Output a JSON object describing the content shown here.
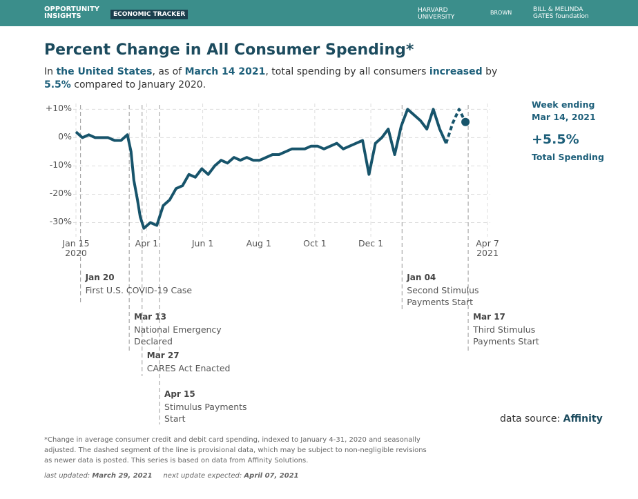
{
  "header": {
    "logo": "OPPORTUNITY INSIGHTS",
    "tracker": "ECONOMIC TRACKER",
    "partners": [
      "HARVARD UNIVERSITY",
      "BROWN",
      "BILL & MELINDA GATES foundation"
    ]
  },
  "chart_data": {
    "type": "line",
    "title": "Percent Change in All Consumer Spending*",
    "subtitle": [
      {
        "text": "In ",
        "bold": false
      },
      {
        "text": "the United States",
        "bold": true
      },
      {
        "text": ", as of ",
        "bold": false
      },
      {
        "text": "March 14 2021",
        "bold": true
      },
      {
        "text": ", total spending by all consumers ",
        "bold": false
      },
      {
        "text": "increased",
        "bold": true
      },
      {
        "text": " by ",
        "bold": false
      },
      {
        "text": "5.5%",
        "bold": true
      },
      {
        "text": " compared to January 2020.",
        "bold": false
      }
    ],
    "x": [
      "2020-01-15",
      "2020-01-22",
      "2020-01-29",
      "2020-02-05",
      "2020-02-12",
      "2020-02-19",
      "2020-02-26",
      "2020-03-04",
      "2020-03-11",
      "2020-03-15",
      "2020-03-18",
      "2020-03-22",
      "2020-03-25",
      "2020-03-29",
      "2020-04-05",
      "2020-04-12",
      "2020-04-15",
      "2020-04-19",
      "2020-04-26",
      "2020-05-03",
      "2020-05-10",
      "2020-05-17",
      "2020-05-24",
      "2020-05-31",
      "2020-06-07",
      "2020-06-14",
      "2020-06-21",
      "2020-06-28",
      "2020-07-05",
      "2020-07-12",
      "2020-07-19",
      "2020-07-26",
      "2020-08-02",
      "2020-08-09",
      "2020-08-16",
      "2020-08-23",
      "2020-08-30",
      "2020-09-06",
      "2020-09-13",
      "2020-09-20",
      "2020-09-27",
      "2020-10-04",
      "2020-10-11",
      "2020-10-18",
      "2020-10-25",
      "2020-11-01",
      "2020-11-08",
      "2020-11-15",
      "2020-11-22",
      "2020-11-29",
      "2020-12-06",
      "2020-12-13",
      "2020-12-20",
      "2020-12-27",
      "2021-01-03",
      "2021-01-10",
      "2021-01-17",
      "2021-01-24",
      "2021-01-31",
      "2021-02-07",
      "2021-02-14",
      "2021-02-21",
      "2021-02-28",
      "2021-03-07",
      "2021-03-14"
    ],
    "series": [
      {
        "color": "#17546b",
        "dashed": false,
        "values": [
          2,
          0,
          1,
          0,
          0,
          0,
          -1,
          -1,
          1,
          -5,
          -15,
          -22,
          -28,
          -32,
          -30,
          -31,
          -28,
          -24,
          -22,
          -18,
          -17,
          -13,
          -14,
          -11,
          -13,
          -10,
          -8,
          -9,
          -7,
          -8,
          -7,
          -8,
          -8,
          -7,
          -6,
          -6,
          -5,
          -4,
          -4,
          -4,
          -3,
          -3,
          -4,
          -3,
          -2,
          -4,
          -3,
          -2,
          -1,
          -13,
          -2,
          0,
          3,
          -6,
          4,
          10,
          8,
          6,
          3,
          10,
          3,
          -2,
          null,
          null,
          null
        ]
      },
      {
        "color": "#17546b",
        "dashed": true,
        "values": [
          null,
          null,
          null,
          null,
          null,
          null,
          null,
          null,
          null,
          null,
          null,
          null,
          null,
          null,
          null,
          null,
          null,
          null,
          null,
          null,
          null,
          null,
          null,
          null,
          null,
          null,
          null,
          null,
          null,
          null,
          null,
          null,
          null,
          null,
          null,
          null,
          null,
          null,
          null,
          null,
          null,
          null,
          null,
          null,
          null,
          null,
          null,
          null,
          null,
          null,
          null,
          null,
          null,
          null,
          null,
          null,
          null,
          null,
          null,
          null,
          null,
          -2,
          5,
          10,
          5.5
        ]
      }
    ],
    "xlim": [
      "2020-01-12",
      "2021-04-10"
    ],
    "xticks": [
      {
        "value": "2020-01-15",
        "label": "Jan 15\n2020"
      },
      {
        "value": "2020-04-01",
        "label": "Apr 1"
      },
      {
        "value": "2020-06-01",
        "label": "Jun 1"
      },
      {
        "value": "2020-08-01",
        "label": "Aug 1"
      },
      {
        "value": "2020-10-01",
        "label": "Oct 1"
      },
      {
        "value": "2020-12-01",
        "label": "Dec 1"
      },
      {
        "value": "2021-04-07",
        "label": "Apr 7\n2021"
      }
    ],
    "ylim": [
      -35,
      13
    ],
    "yticks": [
      {
        "value": 10,
        "label": "+10%"
      },
      {
        "value": 0,
        "label": "0%"
      },
      {
        "value": -10,
        "label": "-10%"
      },
      {
        "value": -20,
        "label": "-20%"
      },
      {
        "value": -30,
        "label": "-30%"
      }
    ],
    "grid": true,
    "events": [
      {
        "x": "2020-01-20",
        "date": "Jan 20",
        "label": "First U.S. COVID-19 Case"
      },
      {
        "x": "2020-03-13",
        "date": "Mar 13",
        "label": "National Emergency\nDeclared"
      },
      {
        "x": "2020-03-27",
        "date": "Mar 27",
        "label": "CARES Act Enacted"
      },
      {
        "x": "2020-04-15",
        "date": "Apr 15",
        "label": "Stimulus Payments\nStart"
      },
      {
        "x": "2021-01-04",
        "date": "Jan 04",
        "label": "Second Stimulus\nPayments Start"
      },
      {
        "x": "2021-03-17",
        "date": "Mar 17",
        "label": "Third Stimulus\nPayments Start"
      }
    ],
    "summary": {
      "week": "Week ending\nMar 14, 2021",
      "change": "+5.5%",
      "label": "Total Spending"
    },
    "source_label": "data source: ",
    "source": "Affinity"
  },
  "footnote": "*Change in average consumer credit and debit card spending, indexed to January 4-31, 2020 and seasonally adjusted. The dashed segment of the line is provisional data, which may be subject to non-negligible revisions as newer data is posted. This series is based on data from Affinity Solutions.",
  "updated": {
    "last_label": "last updated: ",
    "last": "March 29, 2021",
    "next_label": "next update expected: ",
    "next": "April 07, 2021"
  }
}
